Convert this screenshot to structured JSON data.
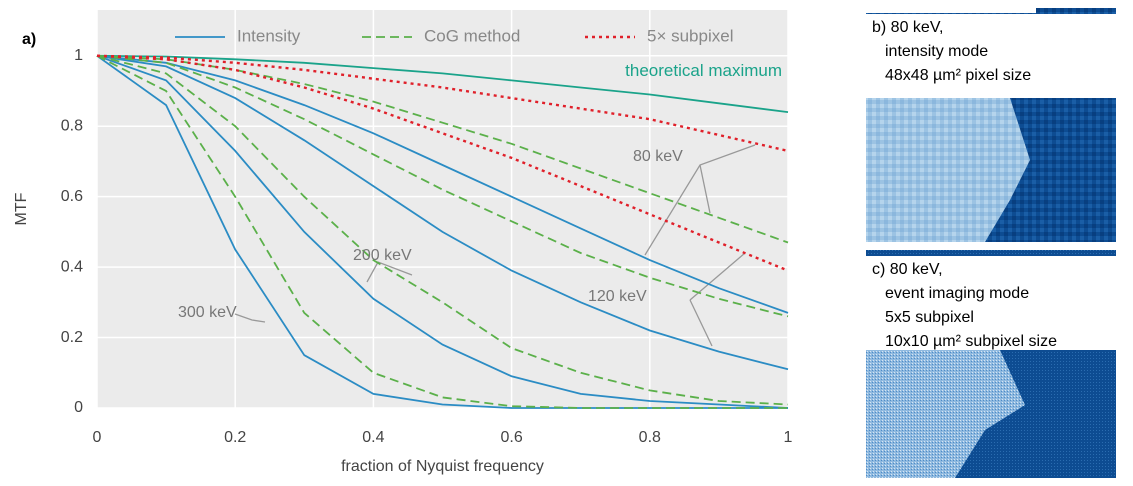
{
  "chart_data": {
    "type": "line",
    "panel_label": "a)",
    "xlabel": "fraction of Nyquist frequency",
    "ylabel": "MTF",
    "xlim": [
      0,
      1
    ],
    "ylim": [
      0,
      1.13
    ],
    "xticks": [
      0,
      0.2,
      0.4,
      0.6,
      0.8,
      1
    ],
    "yticks": [
      0,
      0.2,
      0.4,
      0.6,
      0.8,
      1
    ],
    "grid": true,
    "legend": "top",
    "x": [
      0,
      0.1,
      0.2,
      0.3,
      0.4,
      0.5,
      0.6,
      0.7,
      0.8,
      0.9,
      1
    ],
    "series": [
      {
        "name": "Intensity",
        "color": "#2b8cc4",
        "dash": "solid",
        "curves": [
          [
            1,
            0.98,
            0.93,
            0.86,
            0.78,
            0.69,
            0.6,
            0.51,
            0.42,
            0.34,
            0.27
          ],
          [
            1,
            0.97,
            0.88,
            0.76,
            0.63,
            0.5,
            0.39,
            0.3,
            0.22,
            0.16,
            0.11
          ],
          [
            1,
            0.93,
            0.73,
            0.5,
            0.31,
            0.18,
            0.09,
            0.04,
            0.02,
            0.01,
            0
          ],
          [
            1,
            0.86,
            0.45,
            0.15,
            0.04,
            0.01,
            0,
            0,
            0,
            0,
            0
          ]
        ]
      },
      {
        "name": "CoG method",
        "color": "#5bb04a",
        "dash": "dashed",
        "curves": [
          [
            1,
            0.99,
            0.96,
            0.92,
            0.87,
            0.81,
            0.75,
            0.68,
            0.61,
            0.54,
            0.47
          ],
          [
            1,
            0.98,
            0.91,
            0.82,
            0.72,
            0.62,
            0.53,
            0.44,
            0.37,
            0.31,
            0.26
          ],
          [
            1,
            0.95,
            0.8,
            0.6,
            0.42,
            0.3,
            0.17,
            0.1,
            0.05,
            0.02,
            0.01
          ],
          [
            1,
            0.9,
            0.6,
            0.27,
            0.1,
            0.03,
            0.005,
            0,
            0,
            0,
            0
          ]
        ]
      },
      {
        "name": "5× subpixel",
        "color": "#e0202a",
        "dash": "dotted",
        "curves": [
          [
            1,
            0.995,
            0.98,
            0.96,
            0.935,
            0.91,
            0.88,
            0.85,
            0.82,
            0.775,
            0.73
          ],
          [
            1,
            0.99,
            0.96,
            0.91,
            0.85,
            0.78,
            0.71,
            0.63,
            0.55,
            0.47,
            0.39
          ]
        ]
      }
    ],
    "theoretical_maximum": {
      "label": "theoretical maximum",
      "color": "#1aa38a",
      "values": [
        1,
        0.998,
        0.99,
        0.98,
        0.965,
        0.95,
        0.93,
        0.91,
        0.89,
        0.865,
        0.84
      ]
    },
    "annotations": [
      "80 keV",
      "120 keV",
      "200 keV",
      "300 keV"
    ]
  },
  "panels": [
    {
      "lines": [
        "b) 80 keV,",
        "intensity mode",
        "48x48 µm² pixel size"
      ]
    },
    {
      "lines": [
        "c) 80 keV,",
        "event imaging mode",
        "5x5 subpixel",
        "10x10 µm² subpixel size"
      ]
    }
  ]
}
